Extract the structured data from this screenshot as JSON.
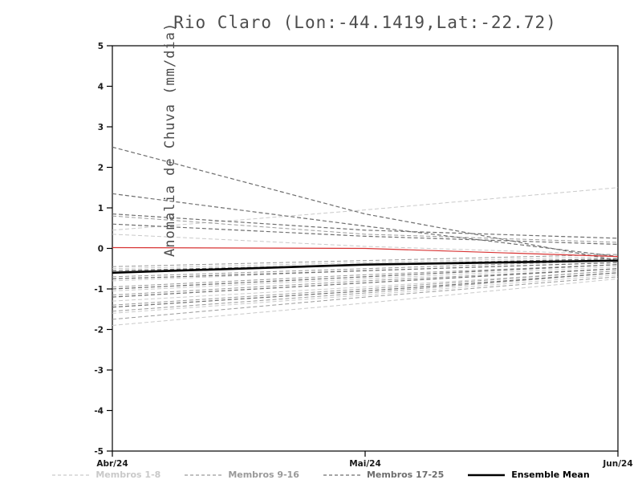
{
  "title": "Rio Claro (Lon:-44.1419,Lat:-22.72)",
  "chart_data": {
    "type": "line",
    "x": [
      "Abr/24",
      "Mai/24",
      "Jun/24"
    ],
    "ylabel": "Anomalia de Chuva (mm/dia)",
    "ylim": [
      -5,
      5
    ],
    "ytick_step": 1,
    "yticks": [
      -5,
      -4,
      -3,
      -2,
      -1,
      0,
      1,
      2,
      3,
      4,
      5
    ],
    "grid": false,
    "legend_position": "bottom",
    "groups": [
      {
        "name": "Membros 1-8",
        "color": "#c9c9c9",
        "style": "dashed",
        "width": 1
      },
      {
        "name": "Membros 9-16",
        "color": "#9a9a9a",
        "style": "dashed",
        "width": 1
      },
      {
        "name": "Membros 17-25",
        "color": "#6e6e6e",
        "style": "dashed",
        "width": 1.2
      },
      {
        "name": "Ensemble Mean",
        "color": "#000000",
        "style": "solid",
        "width": 2.6
      }
    ],
    "members": [
      {
        "group": 0,
        "values": [
          0.45,
          0.95,
          1.5
        ]
      },
      {
        "group": 0,
        "values": [
          0.35,
          0.05,
          -0.15
        ]
      },
      {
        "group": 0,
        "values": [
          -0.5,
          -0.35,
          -0.2
        ]
      },
      {
        "group": 0,
        "values": [
          -0.8,
          -0.55,
          -0.35
        ]
      },
      {
        "group": 0,
        "values": [
          -1.05,
          -0.75,
          -0.45
        ]
      },
      {
        "group": 0,
        "values": [
          -1.3,
          -0.95,
          -0.55
        ]
      },
      {
        "group": 0,
        "values": [
          -1.6,
          -1.15,
          -0.65
        ]
      },
      {
        "group": 0,
        "values": [
          -1.9,
          -1.35,
          -0.75
        ]
      },
      {
        "group": 1,
        "values": [
          0.8,
          0.35,
          0.15
        ]
      },
      {
        "group": 1,
        "values": [
          -0.45,
          -0.3,
          -0.15
        ]
      },
      {
        "group": 1,
        "values": [
          -0.7,
          -0.5,
          -0.3
        ]
      },
      {
        "group": 1,
        "values": [
          -0.95,
          -0.65,
          -0.4
        ]
      },
      {
        "group": 1,
        "values": [
          -1.15,
          -0.8,
          -0.5
        ]
      },
      {
        "group": 1,
        "values": [
          -1.4,
          -1.0,
          -0.55
        ]
      },
      {
        "group": 1,
        "values": [
          -1.55,
          -1.1,
          -0.6
        ]
      },
      {
        "group": 1,
        "values": [
          -1.75,
          -1.2,
          -0.7
        ]
      },
      {
        "group": 2,
        "values": [
          2.5,
          0.85,
          -0.3
        ]
      },
      {
        "group": 2,
        "values": [
          1.35,
          0.55,
          -0.2
        ]
      },
      {
        "group": 2,
        "values": [
          0.85,
          0.45,
          0.25
        ]
      },
      {
        "group": 2,
        "values": [
          0.6,
          0.3,
          0.1
        ]
      },
      {
        "group": 2,
        "values": [
          -0.55,
          -0.4,
          -0.25
        ]
      },
      {
        "group": 2,
        "values": [
          -0.75,
          -0.55,
          -0.35
        ]
      },
      {
        "group": 2,
        "values": [
          -1.0,
          -0.7,
          -0.4
        ]
      },
      {
        "group": 2,
        "values": [
          -1.2,
          -0.85,
          -0.5
        ]
      },
      {
        "group": 2,
        "values": [
          -1.45,
          -1.05,
          -0.6
        ]
      }
    ],
    "ensemble_mean": [
      -0.6,
      -0.4,
      -0.3
    ],
    "zero_reference_line": {
      "color": "#d83434",
      "values": [
        0.02,
        0.0,
        -0.2
      ]
    }
  }
}
